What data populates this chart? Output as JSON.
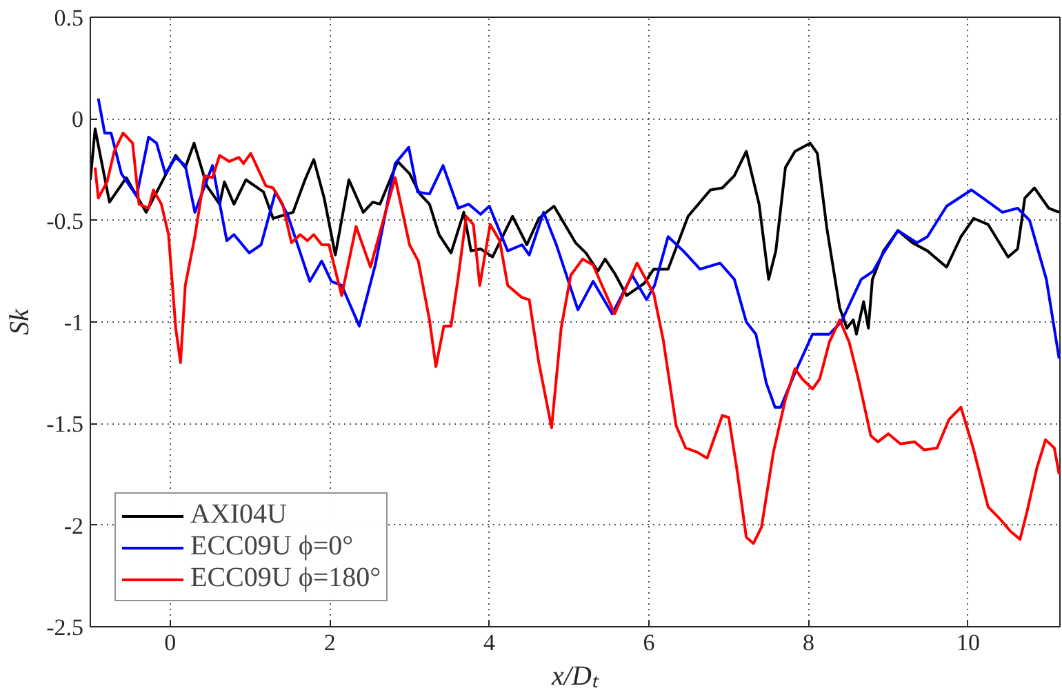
{
  "chart_data": {
    "type": "line",
    "xlabel": "x/Dₜ",
    "ylabel": "Sk",
    "xlim": [
      -1,
      11.15
    ],
    "ylim": [
      -2.5,
      0.5
    ],
    "xticks": [
      0,
      2,
      4,
      6,
      8,
      10
    ],
    "yticks": [
      -2.5,
      -2,
      -1.5,
      -1,
      -0.5,
      0,
      0.5
    ],
    "grid": true,
    "legend": "bottom left",
    "line_style": "solid",
    "marker": "none",
    "series": [
      {
        "name": "AXI04U",
        "color": "#000000",
        "x": [
          -1.0,
          -0.94,
          -0.76,
          -0.55,
          -0.3,
          0.07,
          0.19,
          0.3,
          0.46,
          0.62,
          0.68,
          0.8,
          0.95,
          1.17,
          1.29,
          1.54,
          1.69,
          1.8,
          1.93,
          2.07,
          2.24,
          2.42,
          2.54,
          2.63,
          2.85,
          3.0,
          3.13,
          3.25,
          3.37,
          3.52,
          3.68,
          3.77,
          3.89,
          4.04,
          4.29,
          4.47,
          4.62,
          4.81,
          5.08,
          5.21,
          5.36,
          5.45,
          5.57,
          5.72,
          5.94,
          6.06,
          6.24,
          6.49,
          6.77,
          6.92,
          7.07,
          7.22,
          7.38,
          7.5,
          7.59,
          7.71,
          7.83,
          8.02,
          8.11,
          8.23,
          8.39,
          8.48,
          8.56,
          8.6,
          8.69,
          8.75,
          8.8,
          8.94,
          9.12,
          9.3,
          9.49,
          9.73,
          9.91,
          10.07,
          10.25,
          10.5,
          10.62,
          10.71,
          10.83,
          11.01,
          11.14
        ],
        "values": [
          -0.3,
          -0.05,
          -0.41,
          -0.29,
          -0.46,
          -0.18,
          -0.24,
          -0.12,
          -0.33,
          -0.42,
          -0.31,
          -0.42,
          -0.3,
          -0.36,
          -0.49,
          -0.46,
          -0.3,
          -0.2,
          -0.39,
          -0.67,
          -0.3,
          -0.46,
          -0.41,
          -0.42,
          -0.21,
          -0.27,
          -0.37,
          -0.42,
          -0.57,
          -0.66,
          -0.46,
          -0.65,
          -0.64,
          -0.68,
          -0.48,
          -0.62,
          -0.49,
          -0.43,
          -0.61,
          -0.66,
          -0.75,
          -0.69,
          -0.76,
          -0.87,
          -0.81,
          -0.74,
          -0.74,
          -0.48,
          -0.35,
          -0.34,
          -0.28,
          -0.16,
          -0.42,
          -0.79,
          -0.65,
          -0.24,
          -0.16,
          -0.12,
          -0.17,
          -0.54,
          -0.93,
          -1.03,
          -0.99,
          -1.06,
          -0.9,
          -1.03,
          -0.79,
          -0.65,
          -0.55,
          -0.61,
          -0.65,
          -0.73,
          -0.58,
          -0.49,
          -0.52,
          -0.68,
          -0.64,
          -0.39,
          -0.34,
          -0.44,
          -0.46
        ]
      },
      {
        "name": "ECC09U ϕ=0°",
        "color": "#0000ff",
        "x": [
          -0.9,
          -0.82,
          -0.74,
          -0.61,
          -0.42,
          -0.27,
          -0.17,
          -0.06,
          0.07,
          0.19,
          0.31,
          0.53,
          0.71,
          0.8,
          0.99,
          1.14,
          1.32,
          1.47,
          1.75,
          1.9,
          2.02,
          2.15,
          2.37,
          2.57,
          2.82,
          2.99,
          3.1,
          3.25,
          3.42,
          3.61,
          3.74,
          3.89,
          4.0,
          4.23,
          4.41,
          4.5,
          4.68,
          4.84,
          5.11,
          5.3,
          5.54,
          5.79,
          5.97,
          6.07,
          6.24,
          6.43,
          6.64,
          6.89,
          7.07,
          7.22,
          7.34,
          7.47,
          7.58,
          7.65,
          7.83,
          8.05,
          8.26,
          8.41,
          8.66,
          8.81,
          8.94,
          9.12,
          9.36,
          9.49,
          9.73,
          10.04,
          10.22,
          10.43,
          10.62,
          10.77,
          10.98,
          11.14
        ],
        "values": [
          0.1,
          -0.07,
          -0.07,
          -0.27,
          -0.38,
          -0.09,
          -0.12,
          -0.27,
          -0.19,
          -0.23,
          -0.46,
          -0.23,
          -0.6,
          -0.57,
          -0.66,
          -0.62,
          -0.36,
          -0.47,
          -0.8,
          -0.7,
          -0.8,
          -0.82,
          -1.02,
          -0.72,
          -0.22,
          -0.14,
          -0.36,
          -0.37,
          -0.23,
          -0.44,
          -0.42,
          -0.47,
          -0.43,
          -0.65,
          -0.62,
          -0.67,
          -0.46,
          -0.62,
          -0.94,
          -0.8,
          -0.96,
          -0.77,
          -0.89,
          -0.82,
          -0.58,
          -0.65,
          -0.74,
          -0.71,
          -0.79,
          -1.0,
          -1.06,
          -1.3,
          -1.42,
          -1.42,
          -1.25,
          -1.06,
          -1.06,
          -1.0,
          -0.79,
          -0.75,
          -0.66,
          -0.55,
          -0.61,
          -0.58,
          -0.43,
          -0.35,
          -0.4,
          -0.46,
          -0.44,
          -0.5,
          -0.79,
          -1.18
        ]
      },
      {
        "name": "ECC09U ϕ=180°",
        "color": "#ff0000",
        "x": [
          -0.94,
          -0.9,
          -0.79,
          -0.7,
          -0.59,
          -0.47,
          -0.39,
          -0.27,
          -0.21,
          -0.11,
          -0.02,
          0.07,
          0.13,
          0.19,
          0.31,
          0.43,
          0.53,
          0.62,
          0.74,
          0.86,
          0.92,
          1.01,
          1.2,
          1.29,
          1.41,
          1.52,
          1.63,
          1.72,
          1.8,
          1.9,
          1.99,
          2.15,
          2.33,
          2.51,
          2.67,
          2.82,
          3.0,
          3.11,
          3.25,
          3.33,
          3.43,
          3.52,
          3.61,
          3.71,
          3.8,
          3.88,
          4.01,
          4.13,
          4.23,
          4.41,
          4.5,
          4.62,
          4.78,
          4.9,
          5.02,
          5.17,
          5.3,
          5.57,
          5.85,
          6.06,
          6.18,
          6.34,
          6.46,
          6.6,
          6.73,
          6.82,
          6.92,
          7.0,
          7.1,
          7.22,
          7.31,
          7.41,
          7.56,
          7.71,
          7.83,
          7.92,
          8.05,
          8.14,
          8.26,
          8.39,
          8.51,
          8.63,
          8.78,
          8.87,
          9.0,
          9.15,
          9.33,
          9.45,
          9.61,
          9.76,
          9.91,
          10.07,
          10.25,
          10.4,
          10.53,
          10.65,
          10.74,
          10.86,
          10.97,
          11.08,
          11.14
        ],
        "values": [
          -0.24,
          -0.39,
          -0.31,
          -0.16,
          -0.07,
          -0.12,
          -0.42,
          -0.44,
          -0.35,
          -0.42,
          -0.57,
          -1.03,
          -1.2,
          -0.82,
          -0.58,
          -0.28,
          -0.29,
          -0.18,
          -0.21,
          -0.19,
          -0.22,
          -0.17,
          -0.33,
          -0.34,
          -0.42,
          -0.61,
          -0.57,
          -0.6,
          -0.57,
          -0.62,
          -0.62,
          -0.87,
          -0.53,
          -0.73,
          -0.5,
          -0.29,
          -0.62,
          -0.7,
          -0.99,
          -1.22,
          -1.02,
          -1.02,
          -0.78,
          -0.48,
          -0.52,
          -0.82,
          -0.52,
          -0.6,
          -0.82,
          -0.88,
          -0.89,
          -1.2,
          -1.52,
          -1.03,
          -0.77,
          -0.69,
          -0.72,
          -0.96,
          -0.71,
          -0.86,
          -1.09,
          -1.51,
          -1.62,
          -1.64,
          -1.67,
          -1.57,
          -1.46,
          -1.47,
          -1.72,
          -2.06,
          -2.09,
          -2.01,
          -1.64,
          -1.38,
          -1.23,
          -1.28,
          -1.33,
          -1.28,
          -1.1,
          -0.99,
          -1.1,
          -1.29,
          -1.56,
          -1.59,
          -1.55,
          -1.6,
          -1.59,
          -1.63,
          -1.62,
          -1.48,
          -1.42,
          -1.63,
          -1.91,
          -1.97,
          -2.03,
          -2.07,
          -1.93,
          -1.72,
          -1.58,
          -1.62,
          -1.75
        ]
      }
    ]
  }
}
